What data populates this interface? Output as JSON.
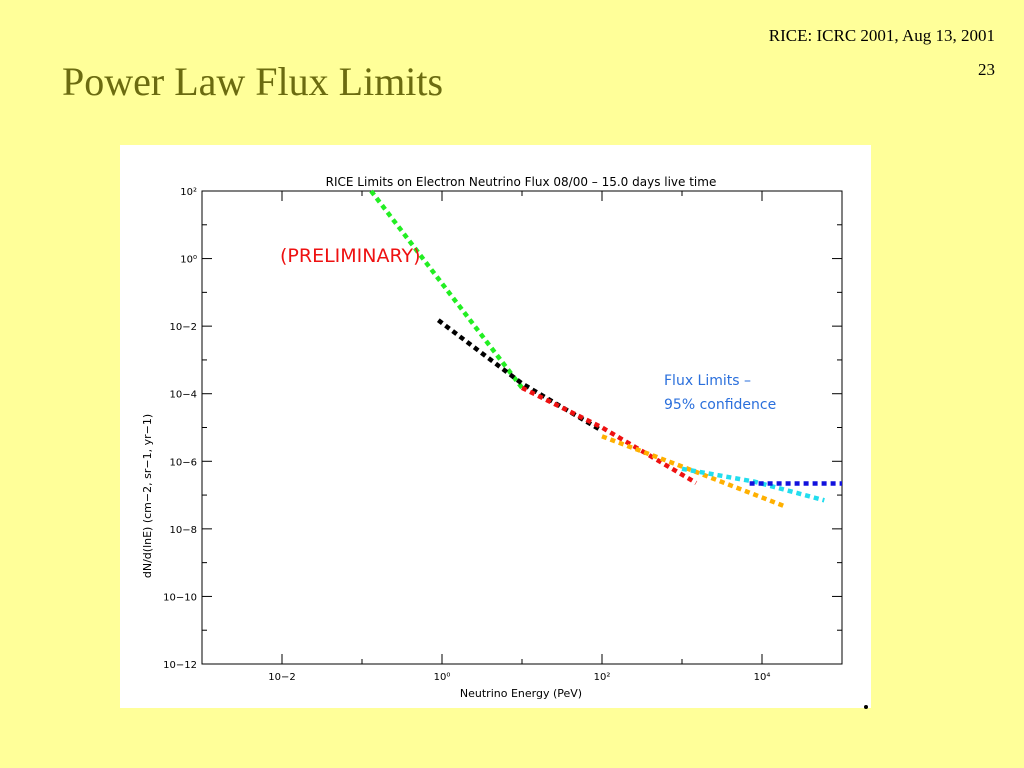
{
  "slide": {
    "title": "Power Law Flux Limits",
    "header": "RICE: ICRC 2001, Aug 13, 2001",
    "page_number": "23"
  },
  "chart_data": {
    "type": "line",
    "title": "RICE Limits on Electron Neutrino Flux 08/00  –  15.0 days live time",
    "xlabel": "Neutrino Energy (PeV)",
    "ylabel": "dN/d(lnE) (cm−2, sr−1, yr−1)",
    "x_scale": "log",
    "y_scale": "log",
    "xlim": [
      0.001,
      100000
    ],
    "ylim": [
      1e-12,
      100
    ],
    "x_ticks": [
      "10−2",
      "10⁰",
      "10²",
      "10⁴"
    ],
    "y_ticks": [
      "10²",
      "10⁰",
      "10−2",
      "10−4",
      "10−6",
      "10−8",
      "10−10",
      "10−12"
    ],
    "annotations": {
      "preliminary": "(PRELIMINARY)",
      "limits_line1": "Flux Limits –",
      "limits_line2": "95% confidence"
    },
    "series": [
      {
        "color": "#22ee22",
        "x": [
          0.13,
          10
        ],
        "y": [
          100,
          0.00015
        ]
      },
      {
        "color": "#000000",
        "x": [
          0.9,
          10,
          100
        ],
        "y": [
          0.015,
          0.0002,
          8e-06
        ]
      },
      {
        "color": "#ee1111",
        "x": [
          10,
          100,
          1500
        ],
        "y": [
          0.00015,
          1e-05,
          2.3e-07
        ]
      },
      {
        "color": "#ffb000",
        "x": [
          100,
          1000,
          20000
        ],
        "y": [
          5.5e-06,
          7e-07,
          4.5e-08
        ]
      },
      {
        "color": "#22ddee",
        "x": [
          1000,
          8000,
          60000
        ],
        "y": [
          6e-07,
          2.5e-07,
          7e-08
        ]
      },
      {
        "color": "#1111dd",
        "x": [
          7000,
          100000
        ],
        "y": [
          2.2e-07,
          2.2e-07
        ]
      }
    ]
  }
}
